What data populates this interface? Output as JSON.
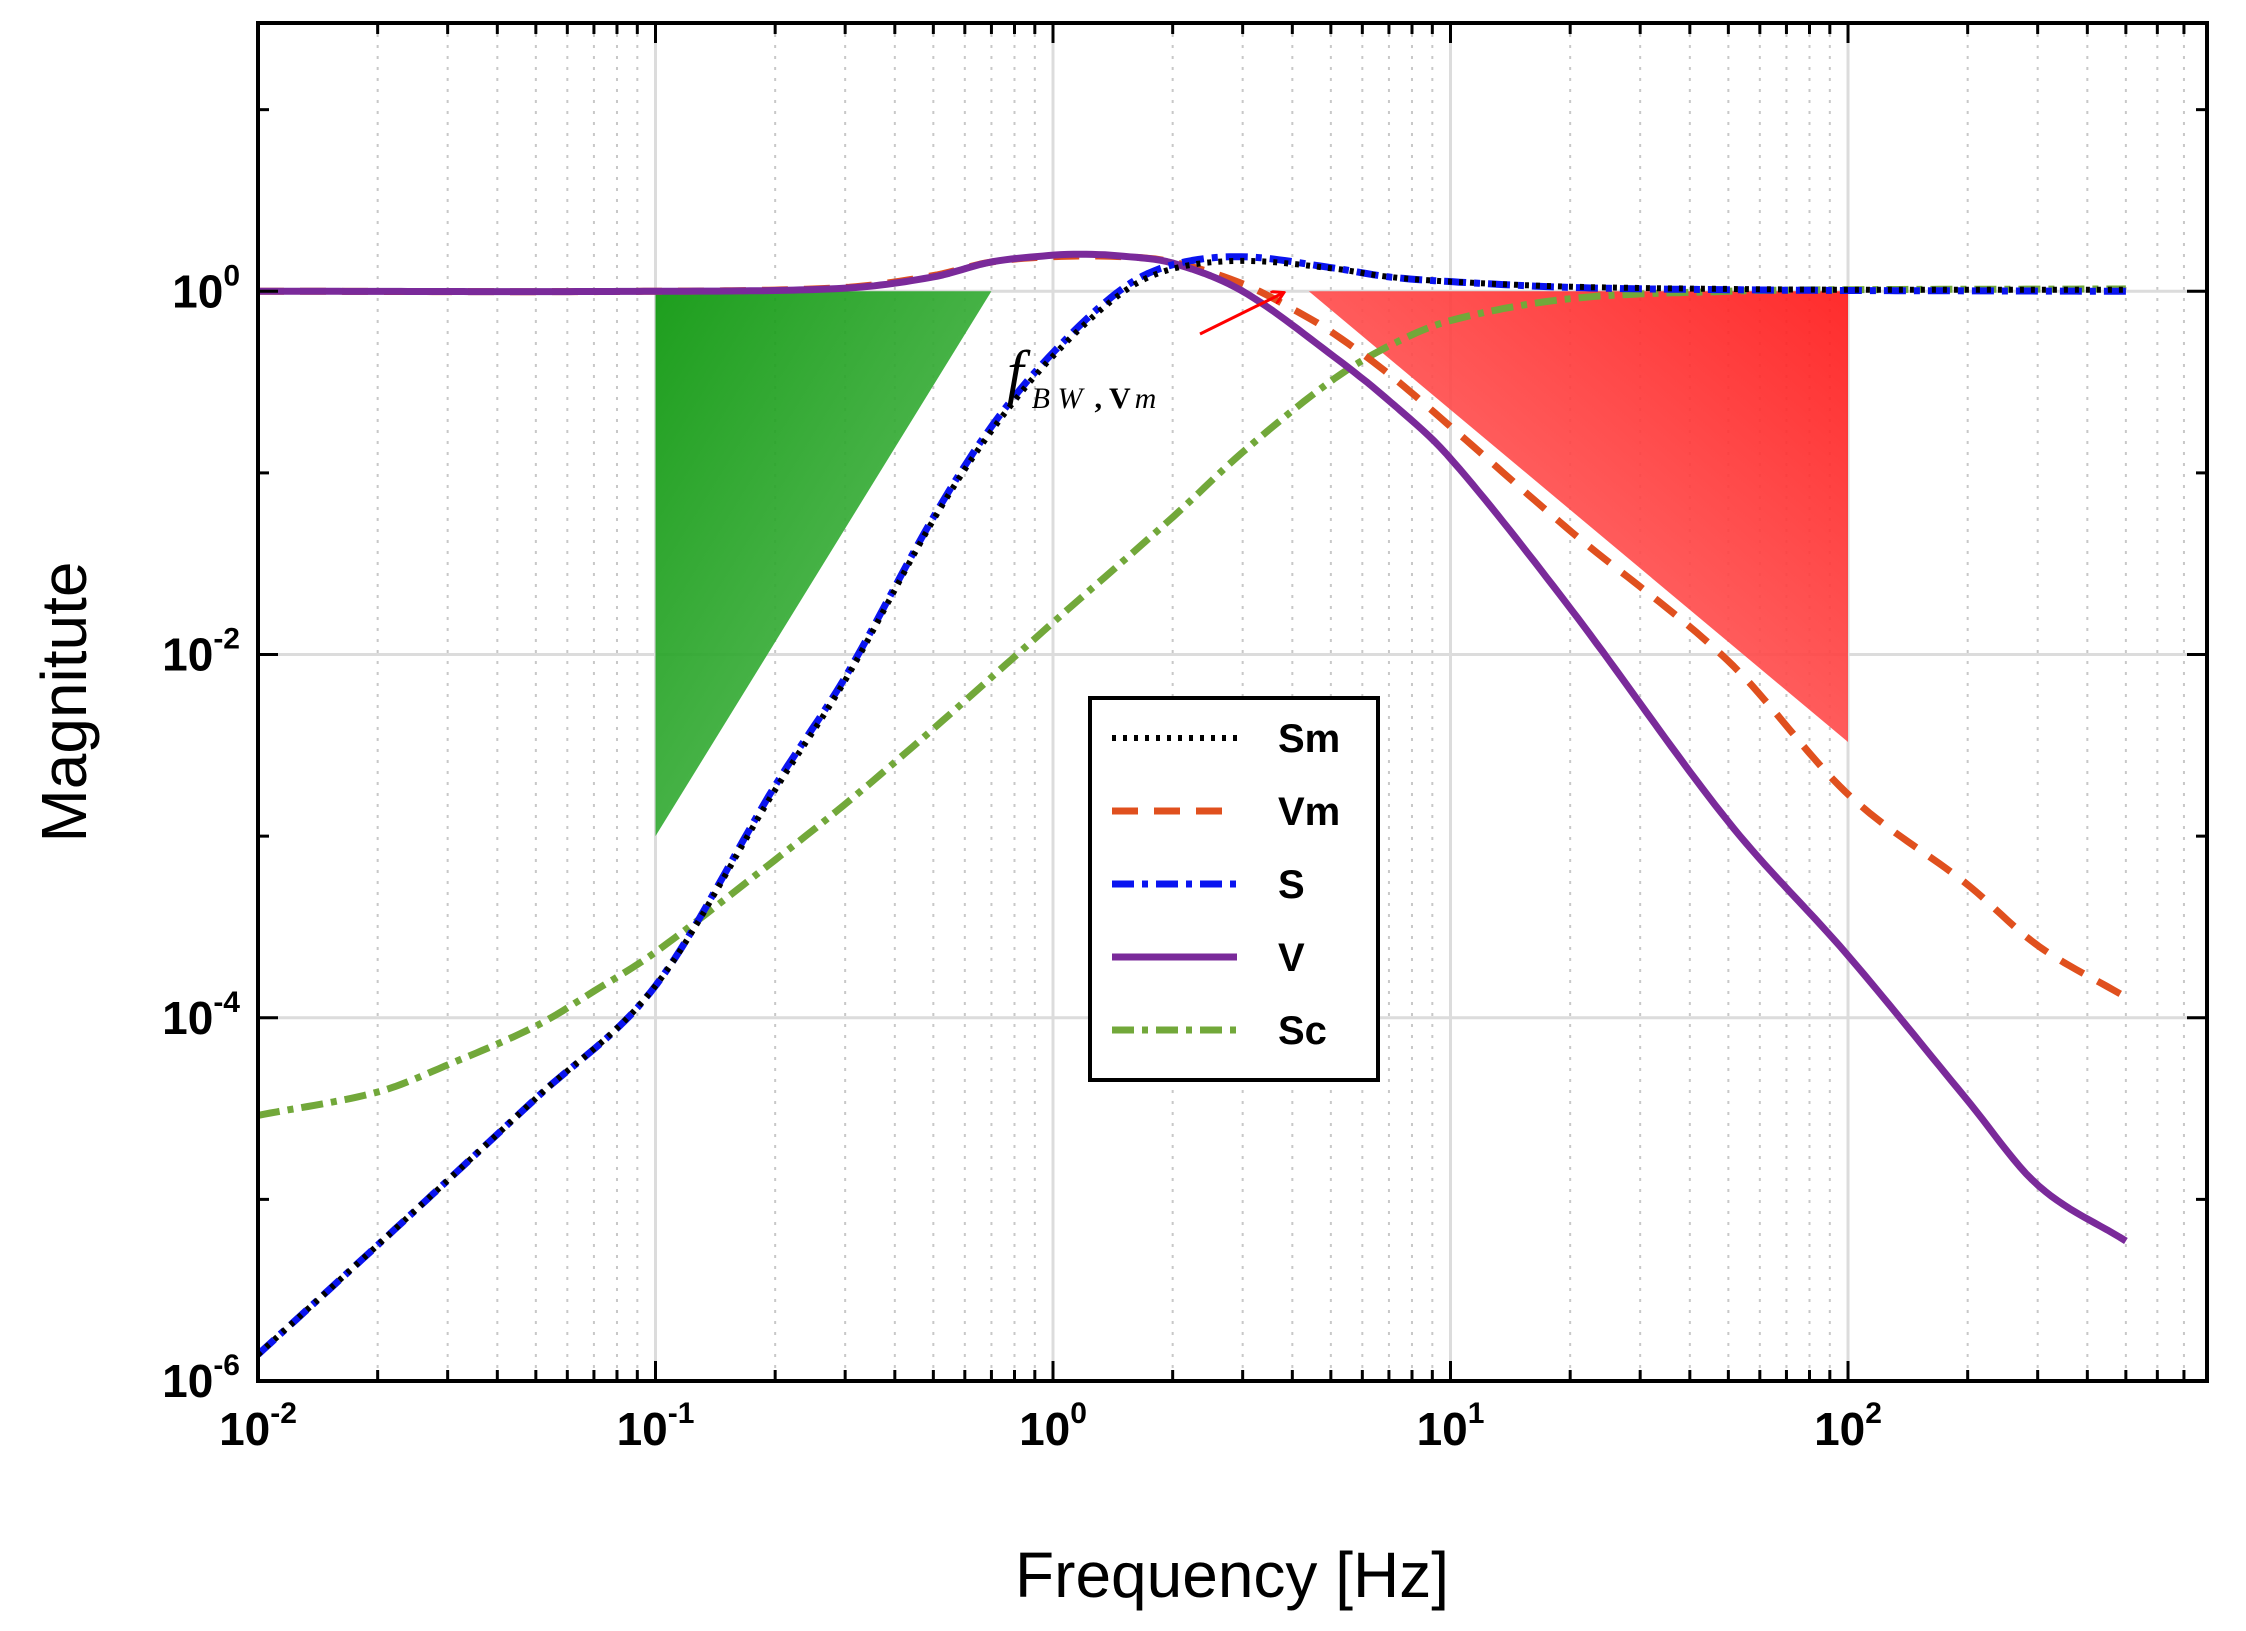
{
  "chart_data": {
    "type": "line",
    "title": "",
    "xlabel": "Frequency [Hz]",
    "ylabel": "Magnitute",
    "xscale": "log",
    "yscale": "log",
    "xlim": [
      0.01,
      800
    ],
    "ylim": [
      1e-06,
      30
    ],
    "x_ticks": [
      {
        "value": 0.01,
        "base": "10",
        "exp": "-2"
      },
      {
        "value": 0.1,
        "base": "10",
        "exp": "-1"
      },
      {
        "value": 1,
        "base": "10",
        "exp": "0"
      },
      {
        "value": 10,
        "base": "10",
        "exp": "1"
      },
      {
        "value": 100,
        "base": "10",
        "exp": "2"
      }
    ],
    "y_ticks": [
      {
        "value": 1e-06,
        "base": "10",
        "exp": "-6"
      },
      {
        "value": 0.0001,
        "base": "10",
        "exp": "-4"
      },
      {
        "value": 0.01,
        "base": "10",
        "exp": "-2"
      },
      {
        "value": 1,
        "base": "10",
        "exp": "0"
      }
    ],
    "grid": true,
    "legend_position": "center",
    "annotation": {
      "label_main": "f",
      "label_sub_italic": "B W",
      "label_sub_bold": ", V",
      "label_sub_tail": "m",
      "points_to_x": 3.97,
      "points_to_y": 0.75
    },
    "shaded_regions": [
      {
        "name": "low-frequency-region",
        "color": "#1a9a1a",
        "points": [
          [
            0.1,
            1.0
          ],
          [
            0.7,
            1.0
          ],
          [
            0.1,
            0.001
          ]
        ]
      },
      {
        "name": "high-frequency-region",
        "color": "#ff2a2a",
        "points": [
          [
            4.4,
            1.0
          ],
          [
            100,
            1.0
          ],
          [
            100,
            0.0033
          ]
        ]
      }
    ],
    "series": [
      {
        "name": "Sm",
        "color": "#000000",
        "style": "dotted",
        "x": [
          0.01,
          0.02,
          0.05,
          0.1,
          0.2,
          0.3,
          0.5,
          0.7,
          1,
          1.5,
          2,
          3,
          5,
          7,
          10,
          20,
          50,
          100,
          500
        ],
        "y": [
          1.4e-06,
          5.6e-06,
          3.6e-05,
          0.00015,
          0.0018,
          0.0072,
          0.055,
          0.17,
          0.44,
          0.99,
          1.33,
          1.47,
          1.34,
          1.2,
          1.13,
          1.06,
          1.03,
          1.02,
          1.02
        ]
      },
      {
        "name": "Vm",
        "color": "#e0501e",
        "style": "dashed",
        "x": [
          0.01,
          0.1,
          0.3,
          0.5,
          0.7,
          1,
          1.5,
          2,
          3,
          4,
          5,
          7,
          10,
          20,
          50,
          100,
          200,
          300,
          500
        ],
        "y": [
          1,
          1,
          1.05,
          1.22,
          1.45,
          1.55,
          1.55,
          1.45,
          1.1,
          0.8,
          0.6,
          0.35,
          0.18,
          0.048,
          0.0092,
          0.0017,
          0.00054,
          0.00025,
          0.00013
        ]
      },
      {
        "name": "S",
        "color": "#0a14f0",
        "style": "dashdot",
        "x": [
          0.01,
          0.02,
          0.05,
          0.1,
          0.2,
          0.3,
          0.5,
          0.7,
          1,
          1.5,
          2,
          3,
          5,
          7,
          10,
          20,
          50,
          100,
          500
        ],
        "y": [
          1.4e-06,
          5.6e-06,
          3.6e-05,
          0.00015,
          0.0019,
          0.0075,
          0.057,
          0.18,
          0.46,
          1.04,
          1.4,
          1.55,
          1.35,
          1.2,
          1.13,
          1.05,
          1.02,
          1.01,
          1.0
        ]
      },
      {
        "name": "V",
        "color": "#7a2a9a",
        "style": "solid",
        "x": [
          0.01,
          0.1,
          0.3,
          0.5,
          0.7,
          1,
          1.2,
          1.5,
          2,
          3,
          5,
          7,
          10,
          20,
          50,
          100,
          200,
          300,
          500
        ],
        "y": [
          1,
          1,
          1.04,
          1.2,
          1.45,
          1.58,
          1.6,
          1.56,
          1.43,
          1.0,
          0.45,
          0.25,
          0.12,
          0.018,
          0.0012,
          0.00022,
          3.5e-05,
          1.2e-05,
          5.9e-06
        ]
      },
      {
        "name": "Sc",
        "color": "#72a83a",
        "style": "dashdot",
        "x": [
          0.01,
          0.02,
          0.03,
          0.05,
          0.07,
          0.1,
          0.2,
          0.3,
          0.5,
          1,
          2,
          3,
          5,
          7,
          10,
          20,
          50,
          100,
          500
        ],
        "y": [
          2.9e-05,
          3.9e-05,
          5.5e-05,
          9e-05,
          0.00014,
          0.00023,
          0.00074,
          0.0015,
          0.0039,
          0.015,
          0.057,
          0.13,
          0.32,
          0.5,
          0.69,
          0.91,
          1.0,
          1.02,
          1.03
        ]
      }
    ]
  }
}
